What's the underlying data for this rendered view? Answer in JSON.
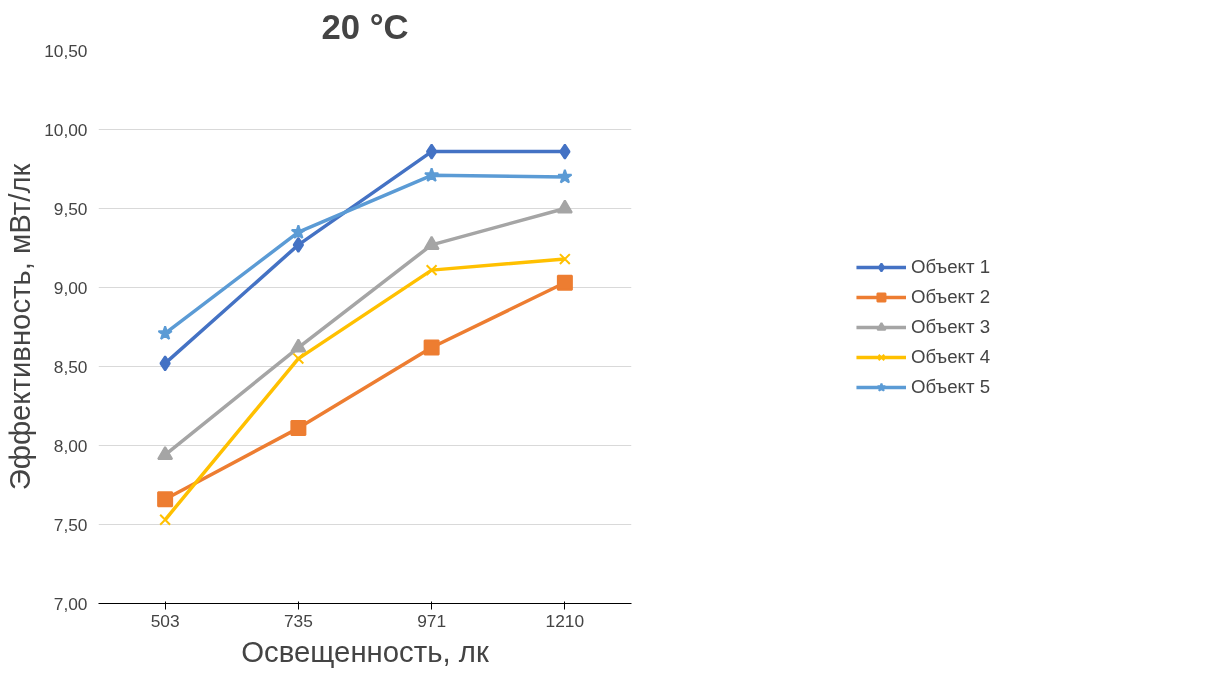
{
  "chart_data": {
    "type": "line",
    "title": "20 °C",
    "xlabel": "Освещенность, лк",
    "ylabel": "Эффективность, мВт/лк",
    "categories": [
      "503",
      "735",
      "971",
      "1210"
    ],
    "series": [
      {
        "name": "Объект 1",
        "color": "#4472c4",
        "marker": "diamond",
        "values": [
          8.52,
          9.27,
          9.86,
          9.86
        ]
      },
      {
        "name": "Объект 2",
        "color": "#ed7d31",
        "marker": "square",
        "values": [
          7.66,
          8.11,
          8.62,
          9.03
        ]
      },
      {
        "name": "Объект 3",
        "color": "#a5a5a5",
        "marker": "triangle",
        "values": [
          7.94,
          8.62,
          9.27,
          9.5
        ]
      },
      {
        "name": "Объект 4",
        "color": "#ffc000",
        "marker": "cross",
        "values": [
          7.53,
          8.55,
          9.11,
          9.18
        ]
      },
      {
        "name": "Объект 5",
        "color": "#5b9bd5",
        "marker": "star",
        "values": [
          8.71,
          9.35,
          9.71,
          9.7
        ]
      }
    ],
    "ylim": [
      7.0,
      10.5
    ],
    "yticks": [
      {
        "value": 7.0,
        "label": "7,00"
      },
      {
        "value": 7.5,
        "label": "7,50"
      },
      {
        "value": 8.0,
        "label": "8,00"
      },
      {
        "value": 8.5,
        "label": "8,50"
      },
      {
        "value": 9.0,
        "label": "9,00"
      },
      {
        "value": 9.5,
        "label": "9,50"
      },
      {
        "value": 10.0,
        "label": "10,00"
      },
      {
        "value": 10.5,
        "label": "10,50"
      }
    ],
    "grid": "y",
    "legend": "right",
    "line_style": "solid"
  }
}
